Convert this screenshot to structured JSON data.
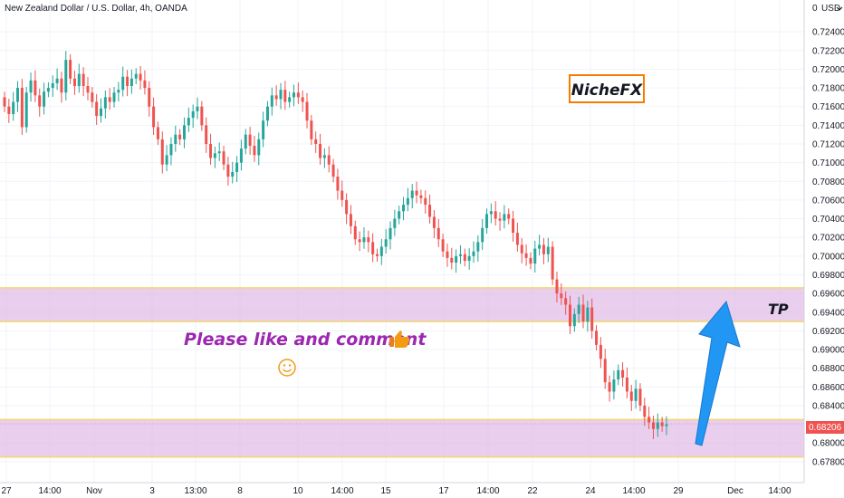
{
  "chart_data": {
    "type": "candlestick",
    "title": "New Zealand Dollar / U.S. Dollar, 4h, OANDA",
    "currency": "USD",
    "price_axis": {
      "range": [
        0.6776,
        0.725
      ],
      "ticks": [
        "0.72400",
        "0.72200",
        "0.72000",
        "0.71800",
        "0.71600",
        "0.71400",
        "0.71200",
        "0.71000",
        "0.70800",
        "0.70600",
        "0.70400",
        "0.70200",
        "0.70000",
        "0.69800",
        "0.69600",
        "0.69400",
        "0.69200",
        "0.69000",
        "0.68800",
        "0.68600",
        "0.68400",
        "0.68200",
        "0.68000",
        "0.67800"
      ],
      "top_label": "0"
    },
    "time_axis": {
      "labels": [
        "27",
        "14:00",
        "Nov",
        "3",
        "13:00",
        "8",
        "10",
        "14:00",
        "15",
        "17",
        "14:00",
        "22",
        "24",
        "14:00",
        "29",
        "Dec",
        "14:00"
      ]
    },
    "last_price": "0.68206",
    "last_price_color": "#ef5350",
    "up_color": "#26a69a",
    "down_color": "#ef5350",
    "zones": [
      {
        "name": "TP zone",
        "from": 0.693,
        "to": 0.6966,
        "label": "TP"
      },
      {
        "name": "current zone",
        "from": 0.6785,
        "to": 0.6825,
        "label": ""
      }
    ],
    "zone_fill": "#e1bee7",
    "zone_border": "#f5d76e",
    "arrow_color": "#2196f3",
    "logo_text": "NicheFX",
    "logo_border": "#f57c00",
    "message": "Please like and comment",
    "message_color": "#9c27b0",
    "candles_close": [
      0.716,
      0.7152,
      0.7165,
      0.718,
      0.7138,
      0.7175,
      0.7188,
      0.7172,
      0.716,
      0.7176,
      0.718,
      0.7185,
      0.719,
      0.7175,
      0.721,
      0.719,
      0.7182,
      0.7195,
      0.7182,
      0.7175,
      0.7165,
      0.715,
      0.7158,
      0.717,
      0.7165,
      0.7175,
      0.7178,
      0.7192,
      0.7182,
      0.719,
      0.7195,
      0.7188,
      0.718,
      0.716,
      0.7138,
      0.7125,
      0.7098,
      0.7108,
      0.712,
      0.713,
      0.7125,
      0.714,
      0.7148,
      0.7155,
      0.716,
      0.714,
      0.712,
      0.7105,
      0.711,
      0.7112,
      0.7098,
      0.7085,
      0.709,
      0.71,
      0.7115,
      0.713,
      0.7118,
      0.7108,
      0.7125,
      0.7145,
      0.716,
      0.7172,
      0.7168,
      0.7178,
      0.7165,
      0.717,
      0.7175,
      0.717,
      0.7165,
      0.7145,
      0.7125,
      0.712,
      0.7105,
      0.7108,
      0.7098,
      0.7085,
      0.707,
      0.706,
      0.7045,
      0.7032,
      0.7018,
      0.7015,
      0.702,
      0.7015,
      0.7002,
      0.7,
      0.701,
      0.7018,
      0.703,
      0.704,
      0.7048,
      0.7055,
      0.7062,
      0.707,
      0.7065,
      0.7062,
      0.7055,
      0.7042,
      0.703,
      0.7018,
      0.7005,
      0.6998,
      0.6993,
      0.7,
      0.7002,
      0.6995,
      0.7,
      0.7005,
      0.7015,
      0.703,
      0.7045,
      0.7048,
      0.704,
      0.7038,
      0.7045,
      0.704,
      0.7025,
      0.7012,
      0.7003,
      0.6998,
      0.6992,
      0.7008,
      0.7012,
      0.7002,
      0.701,
      0.6975,
      0.696,
      0.6955,
      0.6948,
      0.6925,
      0.6938,
      0.6948,
      0.693,
      0.6945,
      0.692,
      0.6905,
      0.689,
      0.6865,
      0.6855,
      0.6868,
      0.6878,
      0.687,
      0.6855,
      0.6845,
      0.6858,
      0.684,
      0.6828,
      0.6822,
      0.6815,
      0.6822,
      0.6818,
      0.682
    ]
  }
}
